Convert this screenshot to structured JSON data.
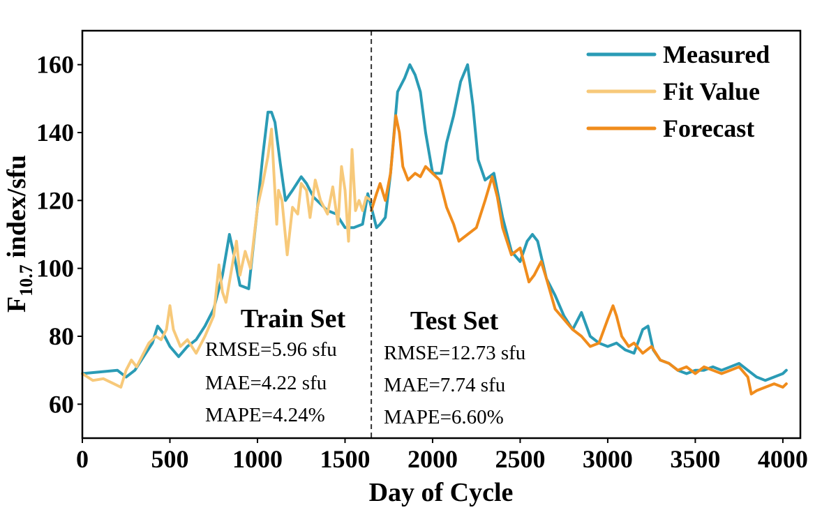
{
  "chart_data": {
    "type": "line",
    "xlabel": "Day of Cycle",
    "ylabel": {
      "main": "F",
      "sub": "10.7",
      "rest": " index/sfu"
    },
    "xlim": [
      0,
      4100
    ],
    "ylim": [
      50,
      170
    ],
    "xticks": [
      0,
      500,
      1000,
      1500,
      2000,
      2500,
      3000,
      3500,
      4000
    ],
    "yticks": [
      60,
      80,
      100,
      120,
      140,
      160
    ],
    "grid": false,
    "legend_position": "top-right",
    "split_x": 1650,
    "series": [
      {
        "name": "Measured",
        "color": "#2a9bb5",
        "x": [
          0,
          100,
          200,
          250,
          300,
          350,
          400,
          430,
          460,
          500,
          550,
          600,
          650,
          700,
          750,
          800,
          840,
          870,
          900,
          950,
          1000,
          1030,
          1060,
          1080,
          1100,
          1130,
          1160,
          1200,
          1250,
          1280,
          1320,
          1360,
          1400,
          1450,
          1500,
          1550,
          1600,
          1630,
          1660,
          1680,
          1700,
          1730,
          1760,
          1800,
          1840,
          1870,
          1900,
          1930,
          1960,
          2000,
          2050,
          2080,
          2120,
          2160,
          2200,
          2230,
          2260,
          2300,
          2350,
          2400,
          2450,
          2500,
          2540,
          2570,
          2600,
          2650,
          2700,
          2750,
          2800,
          2850,
          2900,
          2950,
          3000,
          3050,
          3100,
          3150,
          3200,
          3230,
          3260,
          3300,
          3350,
          3400,
          3450,
          3500,
          3550,
          3600,
          3650,
          3700,
          3750,
          3800,
          3850,
          3900,
          3950,
          4000,
          4020
        ],
        "y": [
          69,
          69.5,
          70,
          68,
          70,
          74,
          78,
          83,
          81,
          77,
          74,
          77,
          79,
          83,
          88,
          98,
          110,
          103,
          95,
          94,
          118,
          133,
          146,
          146,
          143,
          131,
          120,
          123,
          127,
          125,
          121,
          119,
          117,
          116,
          112,
          112,
          113,
          122,
          116,
          112,
          113,
          115,
          128,
          152,
          156,
          160,
          157,
          152,
          140,
          128,
          128,
          137,
          145,
          155,
          160,
          148,
          132,
          126,
          128,
          115,
          105,
          102,
          108,
          110,
          108,
          97,
          92,
          86,
          82,
          87,
          80,
          78,
          77,
          78,
          76,
          75,
          82,
          83,
          76,
          73,
          72,
          70,
          69,
          70,
          70,
          71,
          70,
          71,
          72,
          70,
          68,
          67,
          68,
          69,
          70
        ]
      },
      {
        "name": "Fit Value",
        "color": "#f7c97a",
        "x": [
          0,
          60,
          120,
          180,
          220,
          250,
          280,
          310,
          350,
          380,
          420,
          450,
          480,
          500,
          520,
          560,
          600,
          650,
          700,
          750,
          780,
          800,
          820,
          850,
          880,
          900,
          930,
          960,
          1000,
          1030,
          1060,
          1080,
          1095,
          1110,
          1120,
          1140,
          1170,
          1200,
          1230,
          1250,
          1280,
          1300,
          1330,
          1360,
          1400,
          1430,
          1460,
          1480,
          1500,
          1520,
          1540,
          1560,
          1580,
          1600,
          1620,
          1650
        ],
        "y": [
          69,
          67,
          67.5,
          66,
          65,
          70,
          73,
          71,
          75,
          78,
          80,
          79,
          82,
          89,
          82,
          77,
          79,
          75,
          80,
          86,
          101,
          93,
          90,
          99,
          108,
          98,
          105,
          100,
          118,
          125,
          133,
          141,
          127,
          113,
          123,
          120,
          104,
          118,
          116,
          125,
          123,
          115,
          126,
          120,
          116,
          124,
          113,
          130,
          123,
          108,
          135,
          117,
          120,
          117,
          121,
          120
        ]
      },
      {
        "name": "Forecast",
        "color": "#f08c1c",
        "x": [
          1650,
          1680,
          1700,
          1730,
          1760,
          1790,
          1810,
          1830,
          1860,
          1900,
          1930,
          1960,
          2000,
          2040,
          2080,
          2120,
          2150,
          2200,
          2250,
          2300,
          2340,
          2370,
          2400,
          2450,
          2500,
          2550,
          2580,
          2620,
          2650,
          2700,
          2750,
          2800,
          2850,
          2900,
          2950,
          3000,
          3030,
          3050,
          3080,
          3120,
          3150,
          3200,
          3250,
          3300,
          3350,
          3400,
          3450,
          3500,
          3550,
          3600,
          3650,
          3700,
          3750,
          3800,
          3820,
          3850,
          3900,
          3950,
          4000,
          4020
        ],
        "y": [
          117,
          122,
          125,
          120,
          128,
          145,
          140,
          130,
          126,
          128,
          127,
          130,
          128,
          126,
          118,
          113,
          108,
          110,
          112,
          120,
          127,
          121,
          112,
          104,
          106,
          96,
          98,
          102,
          97,
          88,
          85,
          82,
          80,
          77,
          78,
          85,
          89,
          86,
          80,
          77,
          78,
          75,
          77,
          73,
          72,
          70,
          71,
          69,
          71,
          70,
          69,
          70,
          71,
          68,
          63,
          64,
          65,
          66,
          65,
          66
        ]
      }
    ],
    "annotations": [
      {
        "title": "Train Set",
        "metrics": [
          "RMSE=5.96 sfu",
          "MAE=4.22 sfu",
          "MAPE=4.24%"
        ]
      },
      {
        "title": "Test Set",
        "metrics": [
          "RMSE=12.73 sfu",
          "MAE=7.74 sfu",
          "MAPE=6.60%"
        ]
      }
    ]
  }
}
